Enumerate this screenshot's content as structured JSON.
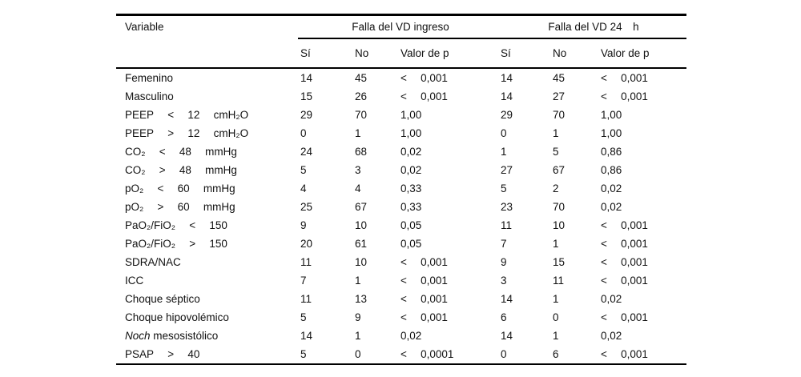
{
  "table": {
    "header": {
      "variable": "Variable",
      "group1": "Falla del VD ingreso",
      "group2": "Falla del VD 24 h"
    },
    "subheader": [
      "Sí",
      "No",
      "Valor de p",
      "Sí",
      "No",
      "Valor de p"
    ],
    "rows": [
      {
        "label_italic": "",
        "label": "Femenino",
        "values": [
          "14",
          "45",
          "<  0,001",
          "14",
          "45",
          "<  0,001"
        ]
      },
      {
        "label_italic": "",
        "label": "Masculino",
        "values": [
          "15",
          "26",
          "<  0,001",
          "14",
          "27",
          "<  0,001"
        ]
      },
      {
        "label_italic": "",
        "label": "PEEP  <  12  cmH₂O",
        "values": [
          "29",
          "70",
          "1,00",
          "29",
          "70",
          "1,00"
        ]
      },
      {
        "label_italic": "",
        "label": "PEEP  >  12  cmH₂O",
        "values": [
          "0",
          "1",
          "1,00",
          "0",
          "1",
          "1,00"
        ]
      },
      {
        "label_italic": "",
        "label": "CO₂  <  48  mmHg",
        "values": [
          "24",
          "68",
          "0,02",
          "1",
          "5",
          "0,86"
        ]
      },
      {
        "label_italic": "",
        "label": "CO₂  >  48  mmHg",
        "values": [
          "5",
          "3",
          "0,02",
          "27",
          "67",
          "0,86"
        ]
      },
      {
        "label_italic": "",
        "label": "pO₂  <  60  mmHg",
        "values": [
          "4",
          "4",
          "0,33",
          "5",
          "2",
          "0,02"
        ]
      },
      {
        "label_italic": "",
        "label": "pO₂  >  60  mmHg",
        "values": [
          "25",
          "67",
          "0,33",
          "23",
          "70",
          "0,02"
        ]
      },
      {
        "label_italic": "",
        "label": "PaO₂/FiO₂  <  150",
        "values": [
          "9",
          "10",
          "0,05",
          "11",
          "10",
          "<  0,001"
        ]
      },
      {
        "label_italic": "",
        "label": "PaO₂/FiO₂  >  150",
        "values": [
          "20",
          "61",
          "0,05",
          "7",
          "1",
          "<  0,001"
        ]
      },
      {
        "label_italic": "",
        "label": "SDRA/NAC",
        "values": [
          "11",
          "10",
          "<  0,001",
          "9",
          "15",
          "<  0,001"
        ]
      },
      {
        "label_italic": "",
        "label": "ICC",
        "values": [
          "7",
          "1",
          "<  0,001",
          "3",
          "11",
          "<  0,001"
        ]
      },
      {
        "label_italic": "",
        "label": "Choque séptico",
        "values": [
          "11",
          "13",
          "<  0,001",
          "14",
          "1",
          "0,02"
        ]
      },
      {
        "label_italic": "",
        "label": "Choque hipovolémico",
        "values": [
          "5",
          "9",
          "<  0,001",
          "6",
          "0",
          "<  0,001"
        ]
      },
      {
        "label_italic": "Noch",
        "label": " mesosistólico",
        "values": [
          "14",
          "1",
          "0,02",
          "14",
          "1",
          "0,02"
        ]
      },
      {
        "label_italic": "",
        "label": "PSAP  >  40",
        "values": [
          "5",
          "0",
          "<  0,0001",
          "0",
          "6",
          "<  0,001"
        ]
      }
    ],
    "text_color": "#111111",
    "rule_color": "#000000"
  }
}
